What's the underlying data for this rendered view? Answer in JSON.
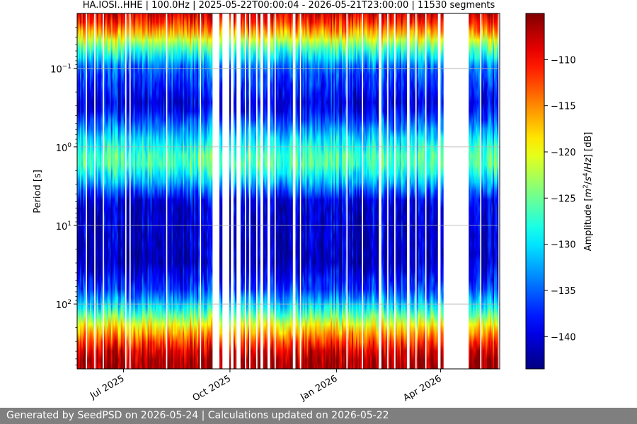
{
  "chart_data": {
    "type": "heatmap",
    "title": "HA.IOSI..HHE | 100.0Hz | 2025-05-22T00:00:04 - 2026-05-21T23:00:00 | 11530 segments",
    "xlabel": "",
    "ylabel": "Period [s]",
    "y_scale": "log",
    "y_inverted": true,
    "ylim": [
      0.02,
      670
    ],
    "xlim": [
      "2025-05-22",
      "2026-05-21"
    ],
    "x_ticks": [
      {
        "date": "2025-07-01",
        "label": "Jul 2025"
      },
      {
        "date": "2025-10-01",
        "label": "Oct 2025"
      },
      {
        "date": "2026-01-01",
        "label": "Jan 2026"
      },
      {
        "date": "2026-04-01",
        "label": "Apr 2026"
      }
    ],
    "y_ticks": [
      {
        "value": 0.1,
        "label": "10",
        "exp": "−1"
      },
      {
        "value": 1,
        "label": "10",
        "exp": "0"
      },
      {
        "value": 10,
        "label": "10",
        "exp": "1"
      },
      {
        "value": 100,
        "label": "10",
        "exp": "2"
      }
    ],
    "grid": true,
    "colormap": "jet",
    "colorbar": {
      "label_parts": [
        "Amplitude [",
        "m",
        "2",
        "/",
        "s",
        "4",
        "/",
        "Hz",
        "] [dB]"
      ],
      "range": [
        -143.5,
        -105
      ],
      "ticks": [
        -110,
        -115,
        -120,
        -125,
        -130,
        -135,
        -140
      ],
      "tick_labels": [
        "−110",
        "−115",
        "−120",
        "−125",
        "−130",
        "−135",
        "−140"
      ]
    },
    "amplitude_profile_db": [
      {
        "period": 0.02,
        "db": -108
      },
      {
        "period": 0.03,
        "db": -113
      },
      {
        "period": 0.05,
        "db": -124
      },
      {
        "period": 0.1,
        "db": -135
      },
      {
        "period": 0.3,
        "db": -140
      },
      {
        "period": 0.8,
        "db": -130
      },
      {
        "period": 1.5,
        "db": -125
      },
      {
        "period": 2.5,
        "db": -130
      },
      {
        "period": 5,
        "db": -140
      },
      {
        "period": 30,
        "db": -141
      },
      {
        "period": 70,
        "db": -136
      },
      {
        "period": 120,
        "db": -128
      },
      {
        "period": 200,
        "db": -118
      },
      {
        "period": 300,
        "db": -112
      },
      {
        "period": 450,
        "db": -107
      },
      {
        "period": 670,
        "db": -106
      }
    ],
    "data_gaps": [
      [
        "2025-09-16",
        "2025-09-21"
      ],
      [
        "2025-09-24",
        "2025-09-30"
      ],
      [
        "2025-10-07",
        "2025-10-08"
      ],
      [
        "2025-10-27",
        "2025-10-28"
      ],
      [
        "2025-11-24",
        "2025-11-25"
      ],
      [
        "2026-01-09",
        "2026-01-10"
      ],
      [
        "2026-02-06",
        "2026-02-08"
      ],
      [
        "2026-03-03",
        "2026-03-04"
      ],
      [
        "2026-03-30",
        "2026-03-31"
      ],
      [
        "2026-04-03",
        "2026-04-24"
      ]
    ]
  },
  "footer": {
    "text": "Generated by SeedPSD on 2026-05-24 | Calculations updated on 2026-05-22",
    "background": "#7f7f7f"
  }
}
